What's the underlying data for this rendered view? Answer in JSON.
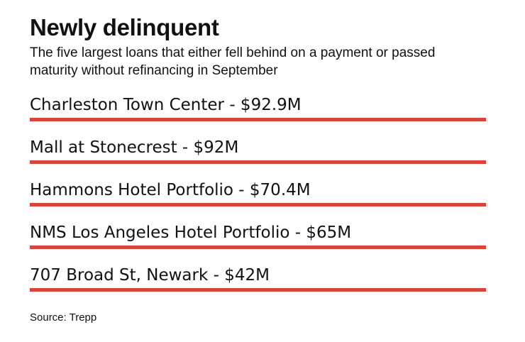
{
  "title": "Newly delinquent",
  "subtitle": "The five largest loans that either fell behind on a payment or passed maturity without refinancing in September",
  "source": "Source: Trepp",
  "bar_color": "#d9453a",
  "chart_data": {
    "type": "bar",
    "orientation": "horizontal",
    "categories": [
      "Charleston Town Center",
      "Mall at Stonecrest",
      "Hammons Hotel Portfolio",
      "NMS Los Angeles Hotel Portfolio",
      "707 Broad St, Newark"
    ],
    "values": [
      92.9,
      92,
      70.4,
      65,
      42
    ],
    "labels": [
      "Charleston Town Center - $92.9M",
      "Mall at Stonecrest - $92M",
      "Hammons Hotel Portfolio - $70.4M",
      "NMS Los Angeles Hotel Portfolio - $65M",
      "707 Broad St, Newark - $42M"
    ],
    "unit": "$M",
    "title": "Newly delinquent",
    "grid": false
  }
}
